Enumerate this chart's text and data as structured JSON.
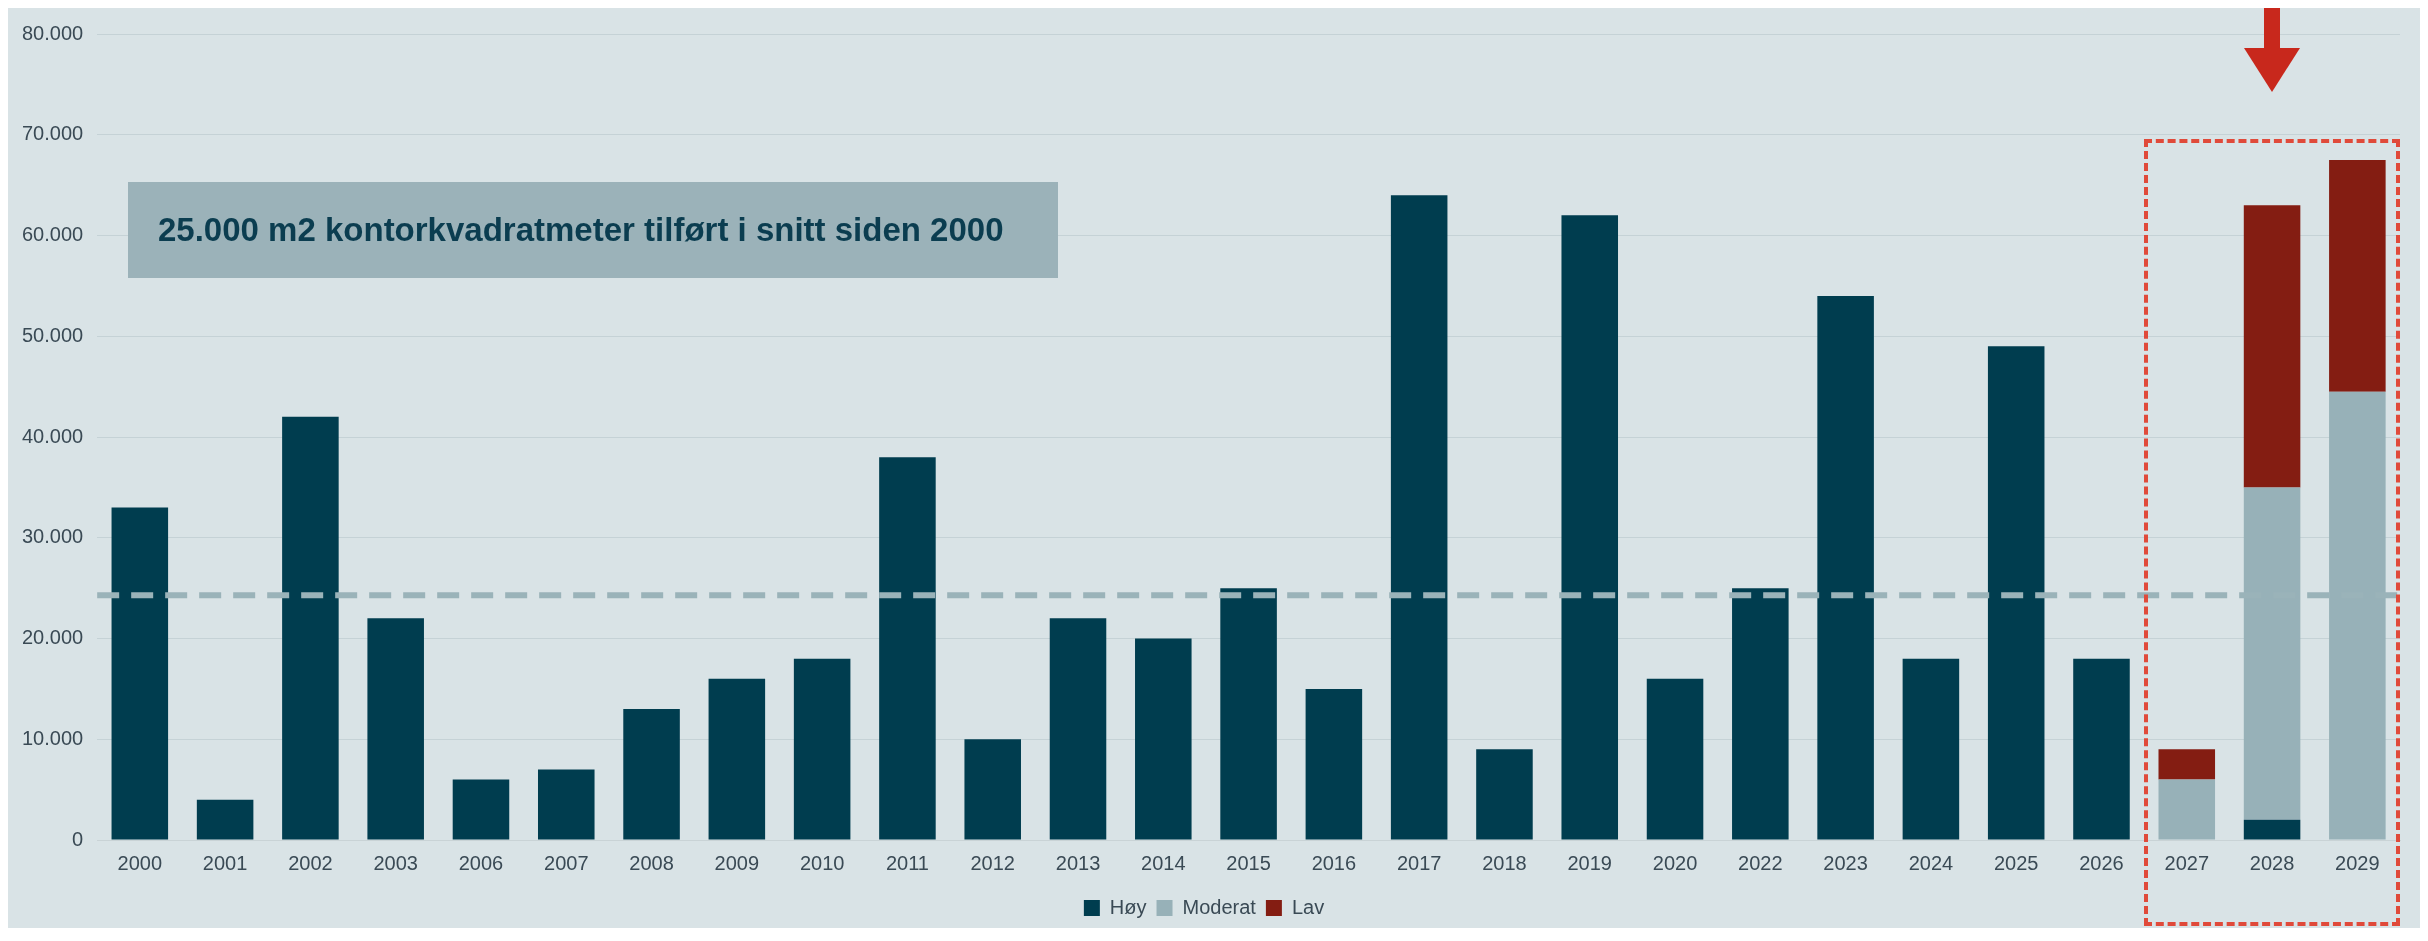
{
  "chart_data": {
    "type": "bar",
    "stacked": true,
    "categories": [
      "2000",
      "2001",
      "2002",
      "2003",
      "2006",
      "2007",
      "2008",
      "2009",
      "2010",
      "2011",
      "2012",
      "2013",
      "2014",
      "2015",
      "2016",
      "2017",
      "2018",
      "2019",
      "2020",
      "2022",
      "2023",
      "2024",
      "2025",
      "2026",
      "2027",
      "2028",
      "2029"
    ],
    "series": [
      {
        "name": "Høy",
        "color": "#003d4f",
        "values": [
          33000,
          4000,
          42000,
          22000,
          6000,
          7000,
          13000,
          16000,
          18000,
          38000,
          10000,
          22000,
          20000,
          25000,
          15000,
          64000,
          9000,
          62000,
          16000,
          25000,
          54000,
          18000,
          49000,
          18000,
          null,
          2000,
          null
        ]
      },
      {
        "name": "Moderat",
        "color": "#97b1b8",
        "values": [
          null,
          null,
          null,
          null,
          null,
          null,
          null,
          null,
          null,
          null,
          null,
          null,
          null,
          null,
          null,
          null,
          null,
          null,
          null,
          null,
          null,
          null,
          null,
          null,
          6000,
          33000,
          44500
        ]
      },
      {
        "name": "Lav",
        "color": "#841d12",
        "values": [
          null,
          null,
          null,
          null,
          null,
          null,
          null,
          null,
          null,
          null,
          null,
          null,
          null,
          null,
          null,
          null,
          null,
          null,
          null,
          null,
          null,
          null,
          null,
          null,
          3000,
          28000,
          23000
        ]
      }
    ],
    "ylim": [
      0,
      80000
    ],
    "yticks": [
      {
        "value": 0,
        "label": "0"
      },
      {
        "value": 10000,
        "label": "10.000"
      },
      {
        "value": 20000,
        "label": "20.000"
      },
      {
        "value": 30000,
        "label": "30.000"
      },
      {
        "value": 40000,
        "label": "40.000"
      },
      {
        "value": 50000,
        "label": "50.000"
      },
      {
        "value": 60000,
        "label": "60.000"
      },
      {
        "value": 70000,
        "label": "70.000"
      },
      {
        "value": 80000,
        "label": "80.000"
      }
    ],
    "grid": "y",
    "legend": "bottom",
    "ref_lines": [
      {
        "axis": "y",
        "value": 24300,
        "color": "#9ab3b9",
        "line_style": "dashed"
      }
    ],
    "annotations": [
      "25.000 m2 kontorkvadratmeter tilført i snitt siden 2000"
    ]
  }
}
